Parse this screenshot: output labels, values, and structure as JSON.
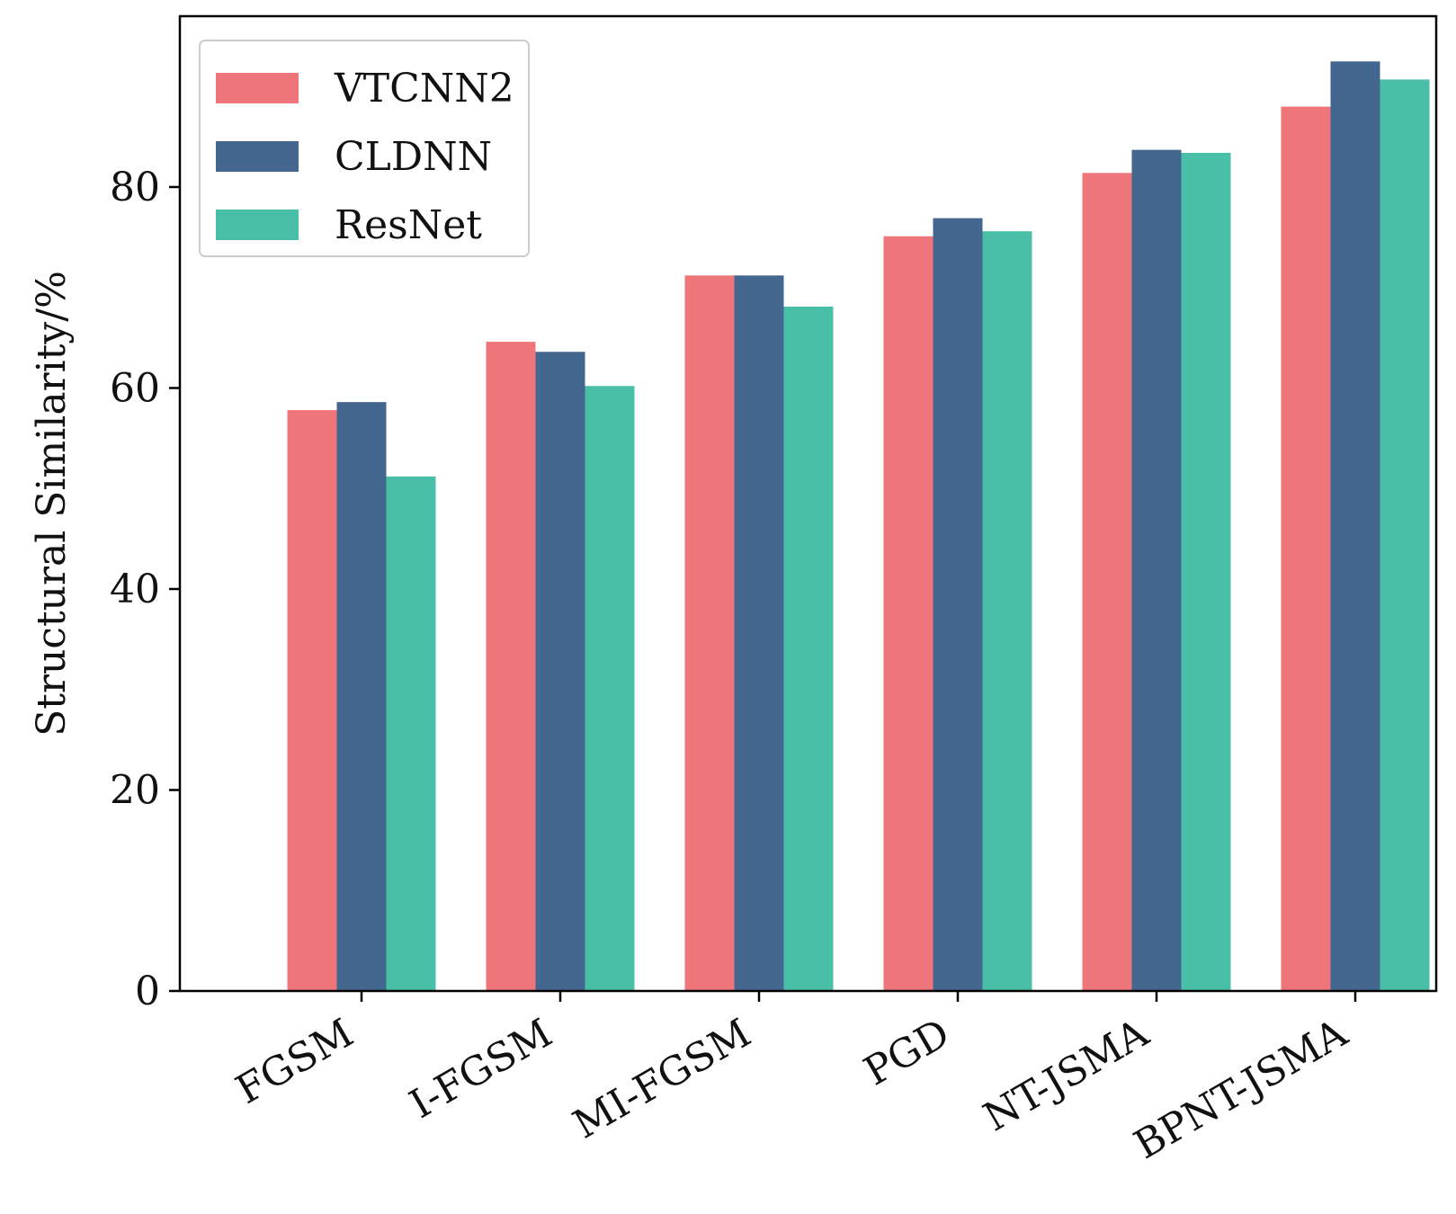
{
  "chart_data": {
    "type": "bar",
    "title": "",
    "xlabel": "",
    "ylabel": "Structural Similarity/%",
    "categories": [
      "FGSM",
      "I-FGSM",
      "MI-FGSM",
      "PGD",
      "NT-JSMA",
      "BPNT-JSMA"
    ],
    "series": [
      {
        "name": "VTCNN2",
        "color": "#EE767A",
        "values": [
          57.8,
          64.6,
          71.2,
          75.1,
          81.4,
          88.0
        ]
      },
      {
        "name": "CLDNN",
        "color": "#44678F",
        "values": [
          58.6,
          63.6,
          71.2,
          76.9,
          83.7,
          92.5
        ]
      },
      {
        "name": "ResNet",
        "color": "#4ABFA8",
        "values": [
          51.2,
          60.2,
          68.1,
          75.6,
          83.4,
          90.7
        ]
      }
    ],
    "ylim": [
      0,
      97
    ],
    "yticks": [
      0,
      20,
      40,
      60,
      80
    ],
    "legend_position": "top-left",
    "grid": false
  }
}
